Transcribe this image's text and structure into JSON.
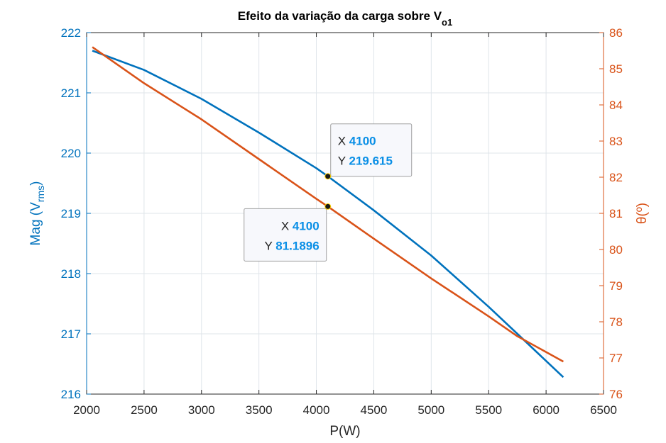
{
  "chart_data": {
    "type": "line",
    "title": "Efeito da variação da carga sobre V",
    "title_subscript": "o1",
    "xlabel": "P(W)",
    "ylabel_left": "Mag (V",
    "ylabel_left_subscript": "rms",
    "ylabel_left_suffix": ")",
    "ylabel_right": "θ(º)",
    "xlim": [
      2000,
      6500
    ],
    "ylim_left": [
      216,
      222
    ],
    "ylim_right": [
      76,
      86
    ],
    "x_ticks": [
      2000,
      2500,
      3000,
      3500,
      4000,
      4500,
      5000,
      5500,
      6000,
      6500
    ],
    "y_ticks_left": [
      216,
      217,
      218,
      219,
      220,
      221,
      222
    ],
    "y_ticks_right": [
      76,
      77,
      78,
      79,
      80,
      81,
      82,
      83,
      84,
      85,
      86
    ],
    "grid": true,
    "series": [
      {
        "axis": "left",
        "color": "#0072BD",
        "x": [
          2050,
          2500,
          3000,
          3500,
          4000,
          4100,
          4500,
          5000,
          5500,
          5750,
          6150
        ],
        "y": [
          221.7,
          221.38,
          220.9,
          220.34,
          219.75,
          219.615,
          219.05,
          218.3,
          217.45,
          217.0,
          216.28
        ]
      },
      {
        "axis": "right",
        "color": "#D95319",
        "x": [
          2050,
          2500,
          3000,
          3500,
          4000,
          4100,
          4500,
          5000,
          5500,
          5750,
          6150
        ],
        "y": [
          85.6,
          84.6,
          83.6,
          82.5,
          81.4,
          81.1896,
          80.3,
          79.2,
          78.15,
          77.6,
          76.9
        ]
      }
    ],
    "datatips": [
      {
        "series": 0,
        "x_label": "X",
        "y_label": "Y",
        "x": "4100",
        "y": "219.615"
      },
      {
        "series": 1,
        "x_label": "X",
        "y_label": "Y",
        "x": "4100",
        "y": "81.1896"
      }
    ]
  }
}
